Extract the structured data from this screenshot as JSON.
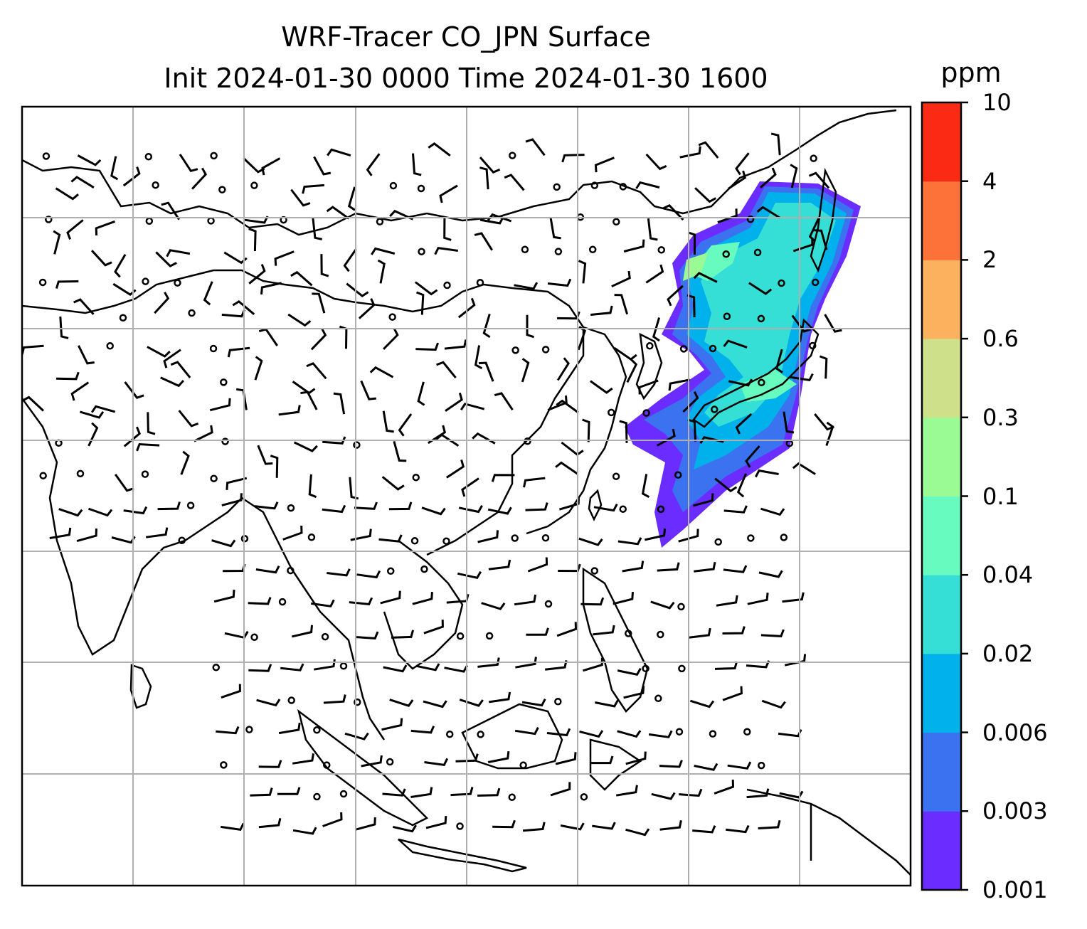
{
  "title": {
    "line1": "WRF-Tracer CO_JPN Surface",
    "line2": "Init 2024-01-30 0000 Time 2024-01-30 1600"
  },
  "colorbar": {
    "units": "ppm",
    "ticks": [
      "0.001",
      "0.003",
      "0.006",
      "0.02",
      "0.04",
      "0.1",
      "0.3",
      "0.6",
      "2",
      "4",
      "10"
    ],
    "colors": [
      "#6a2cff",
      "#3a72f0",
      "#00b1ec",
      "#35dfd6",
      "#68fbbf",
      "#9afb95",
      "#cfe08a",
      "#fcb15e",
      "#fd7239",
      "#fb2a14"
    ]
  },
  "map": {
    "background": "#ffffff",
    "gridline_color": "#b0b0b0",
    "coastline_color": "#000000"
  },
  "tracer_field": {
    "description_levels": [
      "0.003",
      "0.006",
      "0.02",
      "0.04",
      "0.1",
      "0.3"
    ]
  }
}
